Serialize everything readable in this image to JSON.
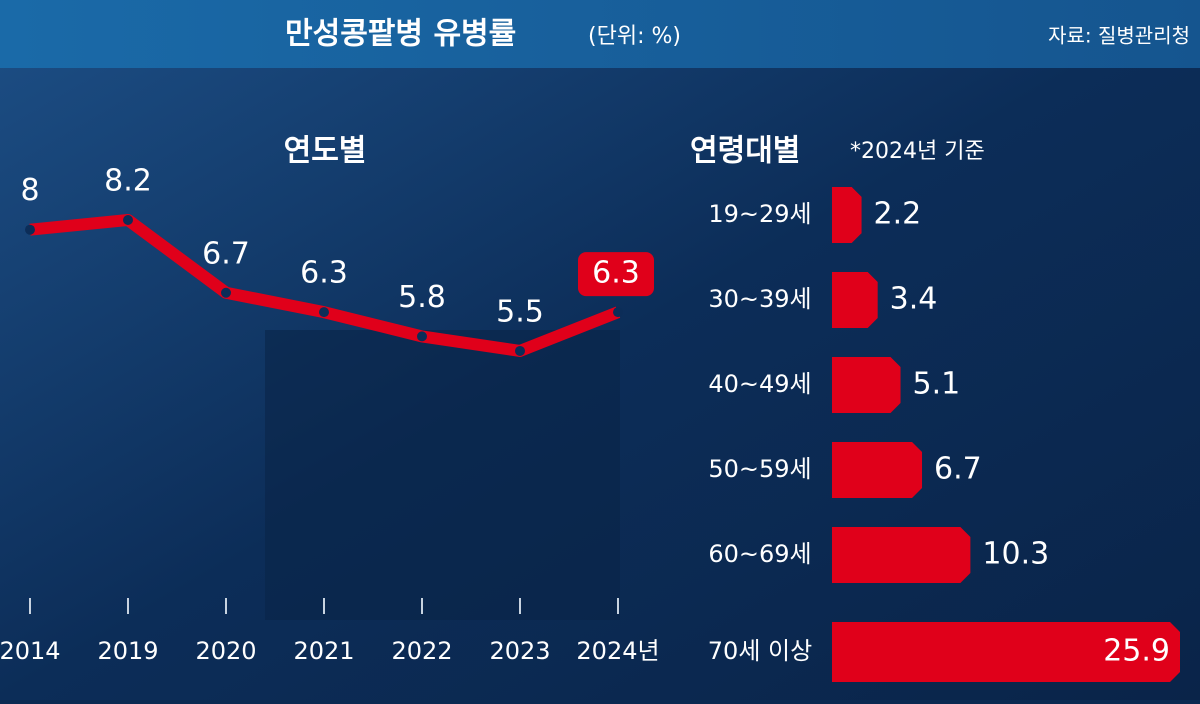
{
  "header": {
    "title": "만성콩팥병 유병률",
    "unit": "(단위: %)",
    "source": "자료: 질병관리청"
  },
  "chart_data": [
    {
      "type": "line",
      "title": "연도별",
      "categories": [
        "2014",
        "2019",
        "2020",
        "2021",
        "2022",
        "2023",
        "2024년"
      ],
      "values": [
        8,
        8.2,
        6.7,
        6.3,
        5.8,
        5.5,
        6.3
      ],
      "color": "#e0001a"
    },
    {
      "type": "bar",
      "orientation": "horizontal",
      "title": "연령대별",
      "subtitle": "*2024년 기준",
      "categories": [
        "19~29세",
        "30~39세",
        "40~49세",
        "50~59세",
        "60~69세",
        "70세 이상"
      ],
      "values": [
        2.2,
        3.4,
        5.1,
        6.7,
        10.3,
        25.9
      ],
      "color": "#e0001a"
    }
  ]
}
